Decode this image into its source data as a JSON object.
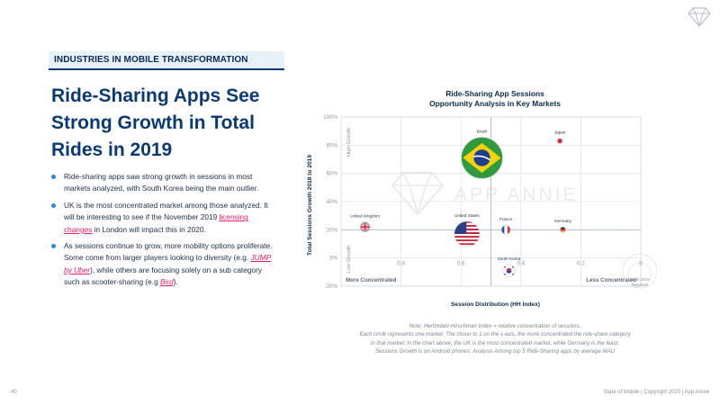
{
  "section_label": "INDUSTRIES IN MOBILE TRANSFORMATION",
  "headline": "Ride-Sharing Apps See Strong Growth in Total Rides in 2019",
  "bullets": [
    {
      "parts": [
        {
          "text": "Ride-sharing apps saw strong growth in sessions in most markets analyzed, with South Korea being the main outlier."
        }
      ]
    },
    {
      "parts": [
        {
          "text": "UK is the most concentrated market among those analyzed. It will be interesting to see if the November 2019 "
        },
        {
          "text": "licensing changes",
          "link": true
        },
        {
          "text": " in London will impact this in 2020."
        }
      ]
    },
    {
      "parts": [
        {
          "text": "As sessions continue to grow, more mobility options proliferate. Some come from larger players looking to diversity (e.g. "
        },
        {
          "text": "JUMP by Uber",
          "link": true,
          "italic": true
        },
        {
          "text": "), while others are focusing solely on a sub category such as scooter-sharing (e.g "
        },
        {
          "text": "Bird",
          "link": true,
          "italic": true
        },
        {
          "text": ")."
        }
      ]
    }
  ],
  "chart_data": {
    "type": "bubble",
    "title": "Ride-Sharing App Sessions\nOpportunity Analysis in Key Markets",
    "xlabel": "Session Distribution (HH Index)",
    "ylabel": "Total Sessions Growth 2018 to 2019",
    "x_reversed": true,
    "xlim": [
      1,
      0
    ],
    "ylim": [
      -0.2,
      1.0
    ],
    "x_ticks": [
      "0.8",
      "0.6",
      "0.4",
      "0.2",
      "0"
    ],
    "x_tick_values": [
      0.8,
      0.6,
      0.4,
      0.2,
      0
    ],
    "y_ticks": [
      "100%",
      "80%",
      "60%",
      "40%",
      "20%",
      "0%",
      "-20%"
    ],
    "y_tick_values": [
      1.0,
      0.8,
      0.6,
      0.4,
      0.2,
      0.0,
      -0.2
    ],
    "quadrant_lines": {
      "x": 0.5,
      "y": 0.2
    },
    "corner_labels": {
      "high_growth": "High Growth",
      "low_growth": "Low Growth",
      "more_concentrated": "More Concentrated",
      "less_concentrated": "Less Concentrated"
    },
    "size_legend_label": "Total 2019 Sessions",
    "watermark": "APP ANNIE",
    "grid": true,
    "points": [
      {
        "name": "Brazil",
        "x": 0.53,
        "y": 0.71,
        "size": 1.0,
        "flag": "brazil"
      },
      {
        "name": "Japan",
        "x": 0.27,
        "y": 0.83,
        "size": 0.02,
        "flag": "japan"
      },
      {
        "name": "United Kingdom",
        "x": 0.92,
        "y": 0.22,
        "size": 0.06,
        "flag": "uk"
      },
      {
        "name": "United States",
        "x": 0.58,
        "y": 0.17,
        "size": 0.38,
        "flag": "usa"
      },
      {
        "name": "France",
        "x": 0.45,
        "y": 0.2,
        "size": 0.05,
        "flag": "france"
      },
      {
        "name": "Germany",
        "x": 0.26,
        "y": 0.2,
        "size": 0.02,
        "flag": "germany"
      },
      {
        "name": "South Korea",
        "x": 0.44,
        "y": -0.09,
        "size": 0.09,
        "flag": "korea"
      }
    ]
  },
  "note": [
    "Note: Herfindahl-Hirschman Index = relative concentration of sessions.",
    "Each circle represents one market. The closer to 1 on the x-axis, the more concentrated the ride-share category",
    "in that market. In the chart above, the UK is the most concentrated market, while Germany is the least.",
    "Sessions Growth is on Android phones; Analysis Among top 5 Ride-Sharing apps by average MAU"
  ],
  "page_number": "40",
  "footer": "State of Mobile  |  Copyright 2020  |  App Annie",
  "colors": {
    "brand_dark": "#0a3a73",
    "bullet_dot": "#2a8bd8",
    "link": "#e91e63",
    "grid": "#d5dbe2"
  }
}
